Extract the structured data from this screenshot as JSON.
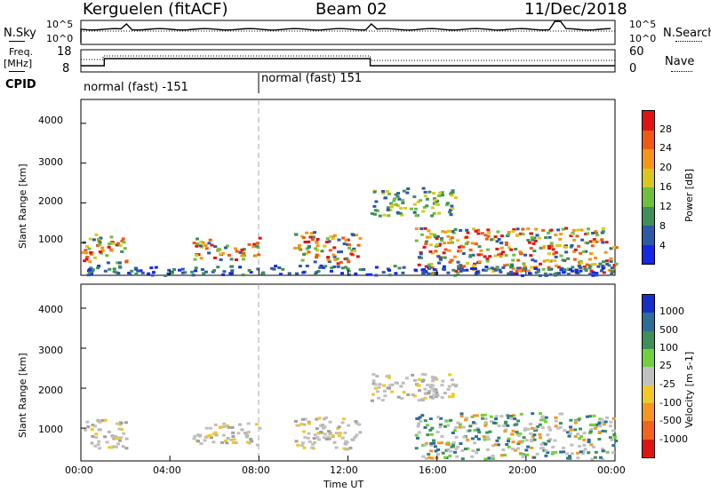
{
  "header": {
    "station": "Kerguelen (fitACF)",
    "beam": "Beam 02",
    "date": "11/Dec/2018"
  },
  "noise_panel": {
    "left_label": "N.Sky",
    "right_label": "N.Search",
    "left_ticks": [
      "10^5",
      "10^0"
    ],
    "right_ticks": [
      "10^5",
      "10^0"
    ]
  },
  "freq_panel": {
    "left_label_line1": "Freq.",
    "left_label_line2": "[MHz]",
    "right_label": "Nave",
    "left_ticks": [
      "18",
      "8"
    ],
    "right_ticks": [
      "60",
      "0"
    ]
  },
  "cpid": {
    "label": "CPID",
    "segments": [
      "normal (fast) -151",
      "normal (fast) 151"
    ]
  },
  "chart_data": [
    {
      "type": "heatmap",
      "title": "",
      "xlabel": "Time UT",
      "ylabel": "Slant Range [km]",
      "xlim": [
        0,
        24
      ],
      "ylim": [
        180,
        4600
      ],
      "x_ticks": [
        "00:00",
        "04:00",
        "08:00",
        "12:00",
        "16:00",
        "20:00",
        "00:00"
      ],
      "y_ticks": [
        "1000",
        "2000",
        "3000",
        "4000"
      ],
      "colorbar": {
        "label": "Power [dB]",
        "ticks": [
          "4",
          "8",
          "12",
          "16",
          "20",
          "24",
          "28"
        ],
        "colors": [
          "#1428e6",
          "#2e59a8",
          "#3f8f5a",
          "#6fbf3c",
          "#d8c81e",
          "#f59614",
          "#ee5a14",
          "#e11414"
        ],
        "range": [
          0,
          32
        ]
      },
      "echo_regions": [
        {
          "t_start": 0.0,
          "t_end": 2.0,
          "r_min": 500,
          "r_max": 1250,
          "level": "high"
        },
        {
          "t_start": 5.0,
          "t_end": 8.0,
          "r_min": 600,
          "r_max": 1150,
          "level": "high"
        },
        {
          "t_start": 9.5,
          "t_end": 12.5,
          "r_min": 500,
          "r_max": 1300,
          "level": "high"
        },
        {
          "t_start": 13.0,
          "t_end": 16.8,
          "r_min": 1700,
          "r_max": 2400,
          "level": "medium"
        },
        {
          "t_start": 15.0,
          "t_end": 24.0,
          "r_min": 250,
          "r_max": 1400,
          "level": "high"
        },
        {
          "t_start": 0.0,
          "t_end": 24.0,
          "r_min": 200,
          "r_max": 450,
          "level": "low"
        }
      ]
    },
    {
      "type": "heatmap",
      "title": "",
      "xlabel": "Time UT",
      "ylabel": "Slant Range [km]",
      "xlim": [
        0,
        24
      ],
      "ylim": [
        180,
        4600
      ],
      "x_ticks": [
        "00:00",
        "04:00",
        "08:00",
        "12:00",
        "16:00",
        "20:00",
        "00:00"
      ],
      "y_ticks": [
        "1000",
        "2000",
        "3000",
        "4000"
      ],
      "colorbar": {
        "label": "Velocity [m s-1]",
        "ticks": [
          "1000",
          "500",
          "100",
          "25",
          "-25",
          "-100",
          "-500",
          "-1000"
        ],
        "colors": [
          "#1430c8",
          "#2c6e96",
          "#3f8f5a",
          "#6fd23c",
          "#c0c0c0",
          "#f0c828",
          "#f5961e",
          "#f0641e",
          "#e11414"
        ],
        "range": [
          -1000,
          1000
        ]
      },
      "echo_regions": [
        {
          "t_start": 0.0,
          "t_end": 2.0,
          "r_min": 500,
          "r_max": 1250,
          "level": "ground"
        },
        {
          "t_start": 5.0,
          "t_end": 8.0,
          "r_min": 600,
          "r_max": 1150,
          "level": "ground"
        },
        {
          "t_start": 9.5,
          "t_end": 12.5,
          "r_min": 500,
          "r_max": 1300,
          "level": "ground"
        },
        {
          "t_start": 13.0,
          "t_end": 16.8,
          "r_min": 1700,
          "r_max": 2400,
          "level": "ground"
        },
        {
          "t_start": 15.0,
          "t_end": 24.0,
          "r_min": 250,
          "r_max": 1400,
          "level": "mixed"
        }
      ]
    }
  ]
}
